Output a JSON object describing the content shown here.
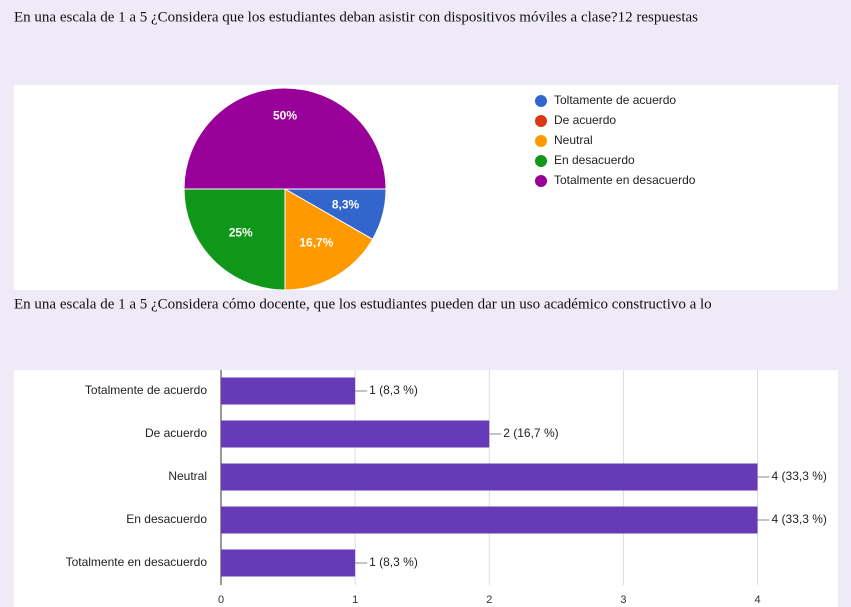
{
  "chart_data": [
    {
      "type": "pie",
      "title": "En una escala de 1 a 5 ¿Considera que los estudiantes deban asistir con dispositivos móviles a clase?12 respuestas",
      "categories": [
        "Toltamente de acuerdo",
        "De acuerdo",
        "Neutral",
        "En desacuerdo",
        "Totalmente en desacuerdo"
      ],
      "values": [
        8.3,
        0,
        16.7,
        25,
        50
      ],
      "value_labels": [
        "8,3%",
        null,
        "16,7%",
        "25%",
        "50%"
      ],
      "colors": [
        "#3366cc",
        "#dc3912",
        "#ff9900",
        "#109618",
        "#990099"
      ],
      "legend": "right"
    },
    {
      "type": "hbar",
      "title": "En una escala de 1 a 5 ¿Considera cómo docente, que los estudiantes pueden dar un uso académico constructivo a lo",
      "categories": [
        "Totalmente de acuerdo",
        "De acuerdo",
        "Neutral",
        "En desacuerdo",
        "Totalmente en desacuerdo"
      ],
      "values": [
        1,
        2,
        4,
        4,
        1
      ],
      "value_labels": [
        "1 (8,3 %)",
        "2 (16,7 %)",
        "4 (33,3 %)",
        "4 (33,3 %)",
        "1 (8,3 %)"
      ],
      "color": "#673ab7",
      "xlim": [
        0,
        4.6
      ],
      "xticks": [
        0,
        1,
        2,
        3,
        4
      ],
      "grid": true
    }
  ]
}
